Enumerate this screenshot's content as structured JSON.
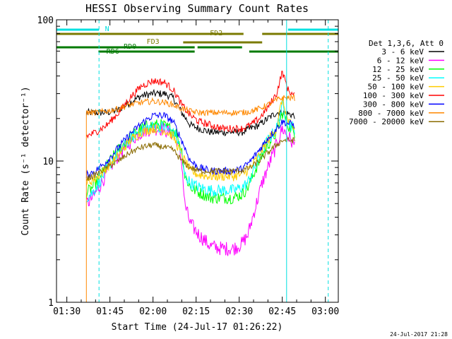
{
  "chart_data": {
    "type": "line",
    "title": "HESSI Observing Summary Count Rates",
    "xlabel": "Start Time (24-Jul-17 01:26:22)",
    "ylabel": "Count Rate (s⁻¹ detector⁻¹)",
    "yscale": "log",
    "ylim": [
      1,
      100
    ],
    "xlim_minutes": [
      86.4,
      184.5
    ],
    "y_ticks": [
      "1",
      "10",
      "100"
    ],
    "x_ticks": [
      {
        "t": 90,
        "label": "01:30"
      },
      {
        "t": 105,
        "label": "01:45"
      },
      {
        "t": 120,
        "label": "02:00"
      },
      {
        "t": 135,
        "label": "02:15"
      },
      {
        "t": 150,
        "label": "02:30"
      },
      {
        "t": 165,
        "label": "02:45"
      },
      {
        "t": 180,
        "label": "03:00"
      }
    ],
    "legend": {
      "header": "Det 1,3,6, Att 0",
      "position": "right"
    },
    "status_bars": [
      {
        "label": "N",
        "color": "#00e0e0",
        "segments": [
          [
            86.4,
            101.2
          ],
          [
            167.0,
            184.5
          ]
        ],
        "level": "top"
      },
      {
        "label": "FD2",
        "color": "#7a7a00",
        "segments": [
          [
            86.4,
            151.5
          ],
          [
            158.0,
            184.5
          ]
        ],
        "level": "fd2"
      },
      {
        "label": "FD3",
        "color": "#7a7a00",
        "segments": [
          [
            130.5,
            158.0
          ]
        ],
        "level": "fd3"
      },
      {
        "label": "RD0",
        "color": "#007a00",
        "segments": [
          [
            86.4,
            134.5
          ],
          [
            135.5,
            151.0
          ]
        ],
        "level": "rd0"
      },
      {
        "label": "RD6",
        "color": "#007a00",
        "segments": [
          [
            101.0,
            134.5
          ],
          [
            153.5,
            184.5
          ]
        ],
        "level": "rd6"
      }
    ],
    "vlines": [
      {
        "t": 86.4,
        "style": "solid",
        "color": "#00e0e0"
      },
      {
        "t": 101.2,
        "style": "dashed",
        "color": "#00e0e0"
      },
      {
        "t": 166.5,
        "style": "solid",
        "color": "#00e0e0"
      },
      {
        "t": 181.0,
        "style": "dashed",
        "color": "#00e0e0"
      }
    ],
    "data_start": 96.8,
    "data_end": 169.3,
    "series": [
      {
        "name": "3 - 6 keV",
        "color": "#000000",
        "noise": 0.06,
        "points": [
          [
            97,
            22
          ],
          [
            100,
            22
          ],
          [
            104,
            22
          ],
          [
            108,
            23
          ],
          [
            112,
            26
          ],
          [
            116,
            29
          ],
          [
            120,
            30
          ],
          [
            124,
            30
          ],
          [
            127,
            28
          ],
          [
            130,
            22
          ],
          [
            133,
            18
          ],
          [
            136,
            17
          ],
          [
            140,
            16
          ],
          [
            144,
            16
          ],
          [
            148,
            16
          ],
          [
            151,
            16
          ],
          [
            154,
            17
          ],
          [
            157,
            18
          ],
          [
            160,
            20
          ],
          [
            163,
            22
          ],
          [
            166,
            22
          ],
          [
            169,
            21
          ]
        ]
      },
      {
        "name": "6 - 12 keV",
        "color": "#ff00ff",
        "noise": 0.12,
        "points": [
          [
            97,
            5
          ],
          [
            99,
            5.5
          ],
          [
            102,
            7
          ],
          [
            105,
            9
          ],
          [
            108,
            11
          ],
          [
            111,
            13
          ],
          [
            114,
            15
          ],
          [
            117,
            16.5
          ],
          [
            120,
            17
          ],
          [
            123,
            17
          ],
          [
            126,
            16
          ],
          [
            128,
            15
          ],
          [
            130,
            10
          ],
          [
            131,
            5
          ],
          [
            133,
            3.6
          ],
          [
            136,
            3
          ],
          [
            140,
            2.5
          ],
          [
            144,
            2.4
          ],
          [
            148,
            2.4
          ],
          [
            151,
            2.6
          ],
          [
            153,
            3
          ],
          [
            156,
            5
          ],
          [
            158,
            7
          ],
          [
            160,
            9
          ],
          [
            163,
            13
          ],
          [
            165,
            17
          ],
          [
            167,
            15
          ],
          [
            169,
            13
          ]
        ]
      },
      {
        "name": "12 - 25 keV",
        "color": "#00ff00",
        "noise": 0.1,
        "points": [
          [
            97,
            6
          ],
          [
            99,
            6.5
          ],
          [
            102,
            8
          ],
          [
            105,
            10
          ],
          [
            108,
            12
          ],
          [
            111,
            14
          ],
          [
            114,
            16
          ],
          [
            117,
            17.5
          ],
          [
            120,
            18
          ],
          [
            123,
            18
          ],
          [
            126,
            17
          ],
          [
            128,
            16
          ],
          [
            130,
            12
          ],
          [
            131,
            8
          ],
          [
            133,
            6.5
          ],
          [
            136,
            6
          ],
          [
            140,
            5.5
          ],
          [
            144,
            5.5
          ],
          [
            148,
            5.5
          ],
          [
            151,
            5.8
          ],
          [
            153,
            6.5
          ],
          [
            156,
            9
          ],
          [
            158,
            11
          ],
          [
            160,
            13
          ],
          [
            163,
            16
          ],
          [
            165,
            22
          ],
          [
            167,
            18
          ],
          [
            169,
            16
          ]
        ]
      },
      {
        "name": "25 - 50 keV",
        "color": "#00ffff",
        "noise": 0.1,
        "points": [
          [
            97,
            5.5
          ],
          [
            99,
            6
          ],
          [
            102,
            7.5
          ],
          [
            105,
            9.5
          ],
          [
            108,
            11.5
          ],
          [
            111,
            13.5
          ],
          [
            114,
            15.5
          ],
          [
            117,
            17
          ],
          [
            120,
            17.5
          ],
          [
            123,
            17.5
          ],
          [
            126,
            16.5
          ],
          [
            128,
            15
          ],
          [
            130,
            11
          ],
          [
            131,
            8
          ],
          [
            133,
            7
          ],
          [
            136,
            6.5
          ],
          [
            140,
            6.2
          ],
          [
            144,
            6.2
          ],
          [
            148,
            6.2
          ],
          [
            151,
            6.5
          ],
          [
            153,
            7
          ],
          [
            156,
            9.5
          ],
          [
            158,
            12
          ],
          [
            160,
            14
          ],
          [
            163,
            17
          ],
          [
            165,
            25
          ],
          [
            167,
            19
          ],
          [
            169,
            17
          ]
        ]
      },
      {
        "name": "50 - 100 keV",
        "color": "#ffcc00",
        "noise": 0.08,
        "points": [
          [
            97,
            7
          ],
          [
            100,
            7.5
          ],
          [
            104,
            9
          ],
          [
            108,
            11
          ],
          [
            112,
            14
          ],
          [
            116,
            16
          ],
          [
            120,
            17
          ],
          [
            124,
            16.5
          ],
          [
            127,
            15
          ],
          [
            130,
            11
          ],
          [
            133,
            8.5
          ],
          [
            136,
            8
          ],
          [
            140,
            7.8
          ],
          [
            144,
            7.8
          ],
          [
            148,
            7.8
          ],
          [
            151,
            8
          ],
          [
            154,
            9
          ],
          [
            157,
            11
          ],
          [
            160,
            14
          ],
          [
            163,
            17
          ],
          [
            165,
            28
          ],
          [
            167,
            19
          ],
          [
            169,
            17
          ]
        ]
      },
      {
        "name": "100 - 300 keV",
        "color": "#ff0000",
        "noise": 0.06,
        "points": [
          [
            97,
            15
          ],
          [
            100,
            16
          ],
          [
            104,
            18
          ],
          [
            108,
            22
          ],
          [
            112,
            28
          ],
          [
            116,
            34
          ],
          [
            120,
            37
          ],
          [
            124,
            36
          ],
          [
            127,
            32
          ],
          [
            130,
            25
          ],
          [
            133,
            21
          ],
          [
            136,
            19
          ],
          [
            140,
            18
          ],
          [
            144,
            17
          ],
          [
            148,
            17
          ],
          [
            151,
            17
          ],
          [
            154,
            18
          ],
          [
            157,
            20
          ],
          [
            160,
            24
          ],
          [
            163,
            30
          ],
          [
            165,
            43
          ],
          [
            167,
            32
          ],
          [
            169,
            29
          ]
        ]
      },
      {
        "name": "300 - 800 keV",
        "color": "#0000ff",
        "noise": 0.06,
        "points": [
          [
            97,
            8
          ],
          [
            100,
            8.5
          ],
          [
            104,
            10
          ],
          [
            108,
            12.5
          ],
          [
            112,
            15.5
          ],
          [
            116,
            18.5
          ],
          [
            120,
            21
          ],
          [
            124,
            21
          ],
          [
            127,
            19
          ],
          [
            130,
            14
          ],
          [
            133,
            10
          ],
          [
            136,
            9
          ],
          [
            140,
            8.5
          ],
          [
            144,
            8.5
          ],
          [
            148,
            8.5
          ],
          [
            151,
            8.8
          ],
          [
            154,
            10
          ],
          [
            157,
            12
          ],
          [
            160,
            14.5
          ],
          [
            163,
            17
          ],
          [
            165,
            19
          ],
          [
            167,
            18.5
          ],
          [
            169,
            18
          ]
        ]
      },
      {
        "name": "800 - 7000 keV",
        "color": "#ff8800",
        "noise": 0.05,
        "points": [
          [
            97,
            22
          ],
          [
            100,
            22
          ],
          [
            104,
            22.5
          ],
          [
            108,
            23.5
          ],
          [
            112,
            25
          ],
          [
            116,
            26
          ],
          [
            120,
            26.5
          ],
          [
            124,
            26
          ],
          [
            127,
            25
          ],
          [
            130,
            23.5
          ],
          [
            133,
            22.5
          ],
          [
            136,
            22
          ],
          [
            140,
            22
          ],
          [
            144,
            22
          ],
          [
            148,
            22
          ],
          [
            151,
            22
          ],
          [
            154,
            22.5
          ],
          [
            157,
            23.5
          ],
          [
            160,
            25
          ],
          [
            163,
            27
          ],
          [
            165,
            28
          ],
          [
            167,
            28
          ],
          [
            169,
            28
          ]
        ]
      },
      {
        "name": "7000 - 20000 keV",
        "color": "#8a6b00",
        "noise": 0.05,
        "points": [
          [
            97,
            7.5
          ],
          [
            100,
            8
          ],
          [
            104,
            9
          ],
          [
            108,
            10
          ],
          [
            112,
            11.5
          ],
          [
            116,
            12.5
          ],
          [
            120,
            13
          ],
          [
            124,
            12.5
          ],
          [
            127,
            12
          ],
          [
            130,
            10
          ],
          [
            133,
            9
          ],
          [
            136,
            8.5
          ],
          [
            140,
            8.5
          ],
          [
            144,
            8.5
          ],
          [
            148,
            8.5
          ],
          [
            151,
            8.6
          ],
          [
            154,
            9
          ],
          [
            157,
            10
          ],
          [
            160,
            11.5
          ],
          [
            163,
            13
          ],
          [
            165,
            14
          ],
          [
            167,
            14
          ],
          [
            169,
            14
          ]
        ]
      }
    ],
    "footer_timestamp": "24-Jul-2017 21:28"
  }
}
